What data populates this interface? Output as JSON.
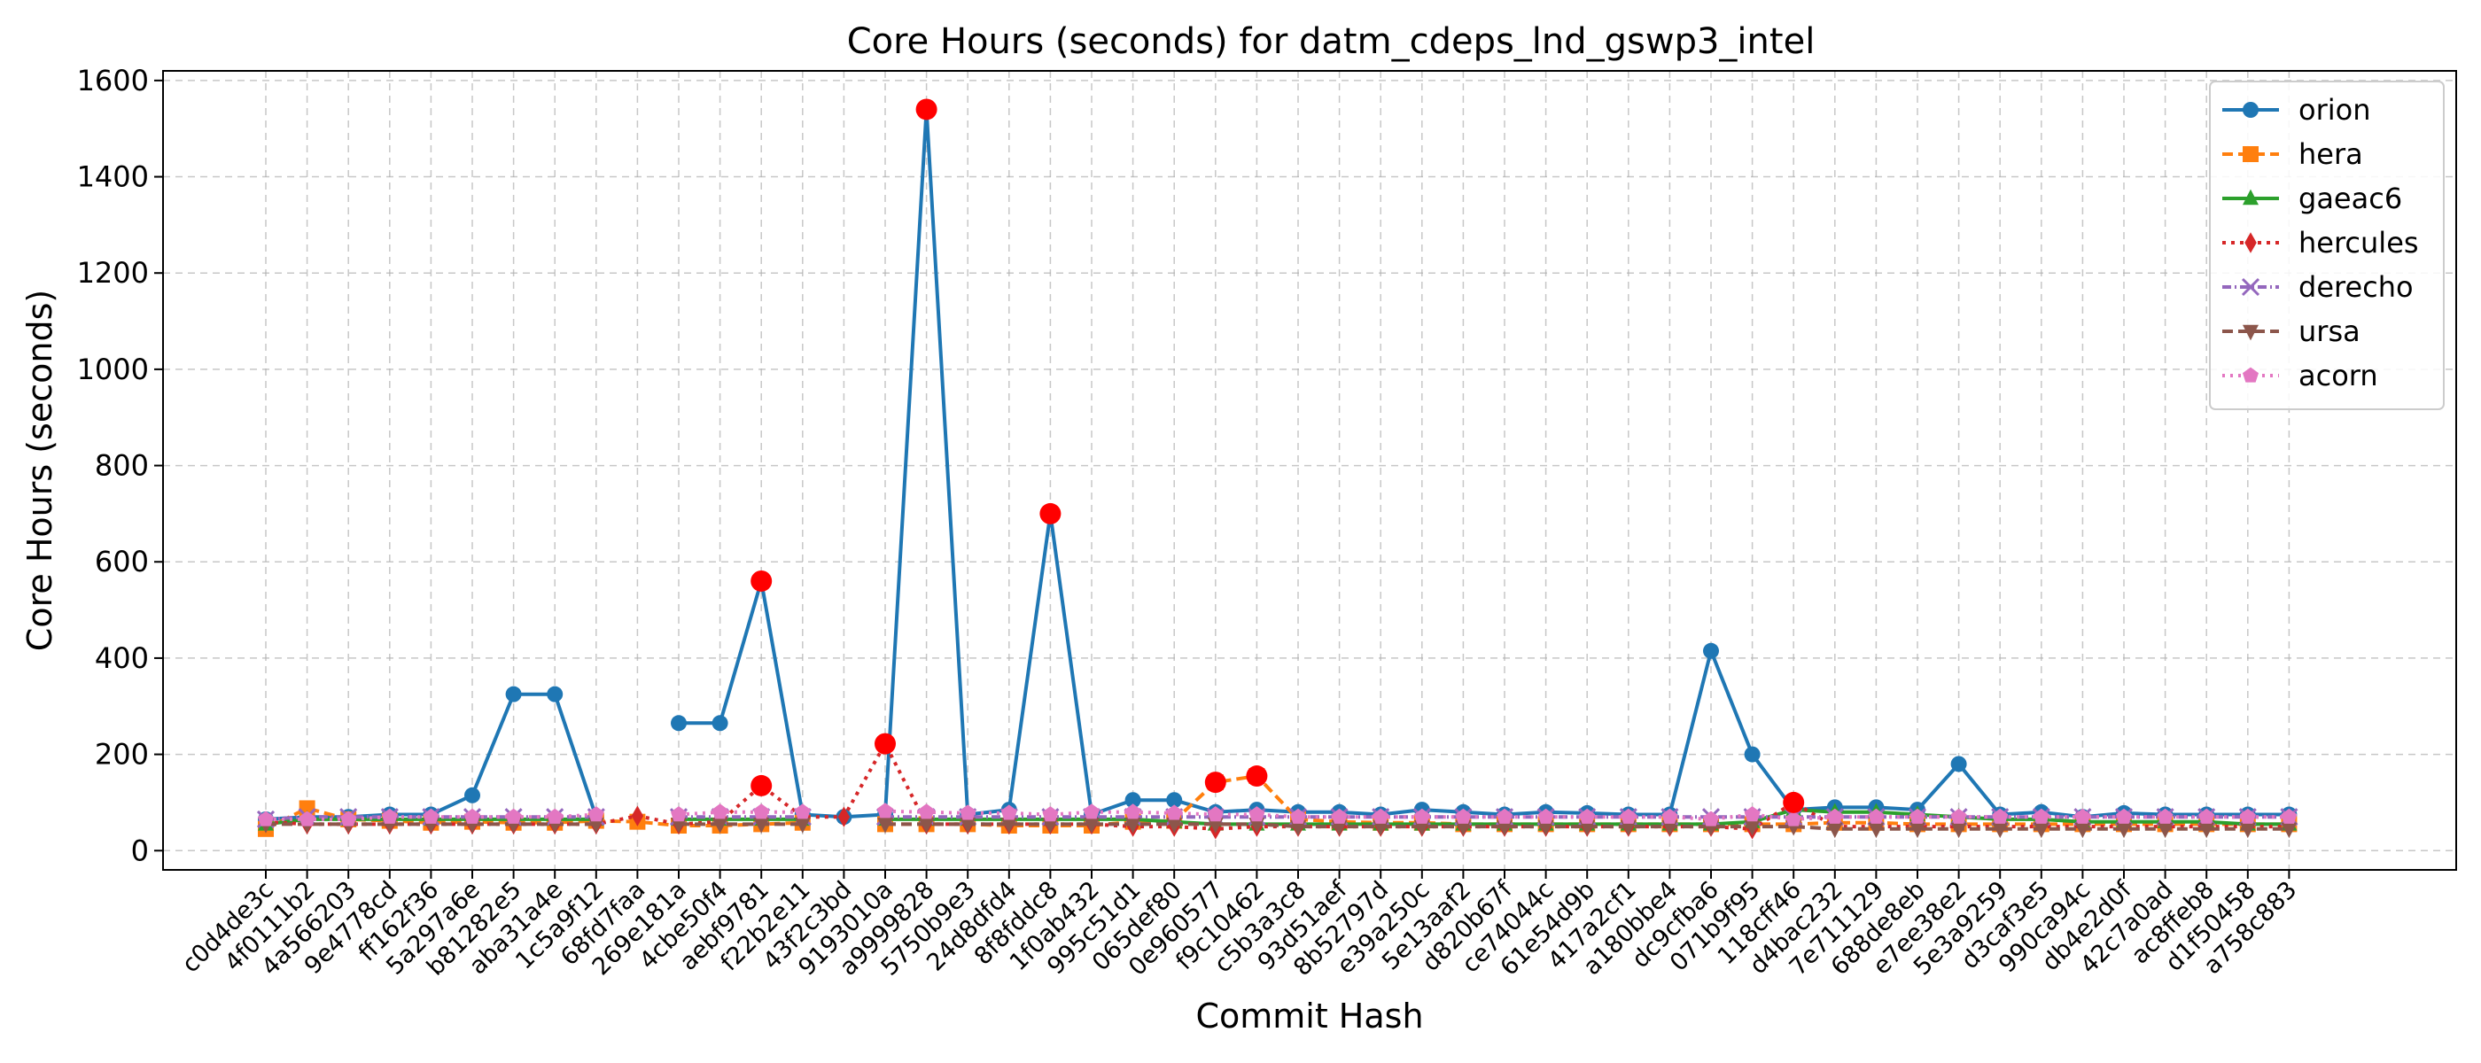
{
  "chart_data": {
    "type": "line",
    "title": "Core Hours (seconds) for datm_cdeps_lnd_gswp3_intel",
    "xlabel": "Commit Hash",
    "ylabel": "Core Hours (seconds)",
    "ylim": [
      -40,
      1620
    ],
    "yticks": [
      0,
      200,
      400,
      600,
      800,
      1000,
      1200,
      1400,
      1600
    ],
    "grid": true,
    "legend_position": "top-right",
    "categories": [
      "c0d4de3c",
      "4f0111b2",
      "4a566203",
      "9e4778cd",
      "ff162f36",
      "5a297a6e",
      "b81282e5",
      "aba31a4e",
      "1c5a9f12",
      "68fd7faa",
      "269e181a",
      "4cbe50f4",
      "aebf9781",
      "f22b2e11",
      "43f2c3bd",
      "9193010a",
      "a9999828",
      "5750b9e3",
      "24d8dfd4",
      "8f8fddc8",
      "1f0ab432",
      "995c51d1",
      "065def80",
      "0e960577",
      "f9c10462",
      "c5b3a3c8",
      "93d51aef",
      "8b52797d",
      "e39a250c",
      "5e13aaf2",
      "d820b67f",
      "ce74044c",
      "61e54d9b",
      "417a2cf1",
      "a180bbe4",
      "dc9cfba6",
      "071b9f95",
      "118cff46",
      "d4bac232",
      "7e711129",
      "688de8eb",
      "e7ee38e2",
      "5e3a9259",
      "d3caf3e5",
      "990ca94c",
      "db4e2d0f",
      "42c7a0ad",
      "ac8ffeb8",
      "d1f50458",
      "a758c883"
    ],
    "series": [
      {
        "name": "orion",
        "color": "#1f77b4",
        "dash": "",
        "marker": "circle",
        "values": [
          65,
          70,
          70,
          75,
          75,
          115,
          325,
          325,
          70,
          null,
          265,
          265,
          560,
          75,
          70,
          75,
          1540,
          75,
          85,
          700,
          75,
          105,
          105,
          80,
          85,
          80,
          80,
          75,
          85,
          80,
          75,
          80,
          78,
          75,
          75,
          415,
          200,
          85,
          90,
          90,
          85,
          180,
          75,
          80,
          70,
          78,
          75,
          75,
          75,
          75
        ]
      },
      {
        "name": "hera",
        "color": "#ff7f0e",
        "dash": "12,6",
        "marker": "square",
        "values": [
          45,
          88,
          65,
          62,
          58,
          60,
          58,
          58,
          62,
          60,
          52,
          52,
          55,
          58,
          null,
          55,
          55,
          55,
          52,
          52,
          52,
          60,
          62,
          142,
          155,
          65,
          60,
          58,
          58,
          55,
          55,
          55,
          55,
          55,
          55,
          55,
          55,
          55,
          58,
          58,
          55,
          55,
          55,
          55,
          55,
          55,
          55,
          55,
          55,
          55
        ]
      },
      {
        "name": "gaeac6",
        "color": "#2ca02c",
        "dash": "",
        "marker": "triangle-up",
        "values": [
          55,
          65,
          65,
          65,
          65,
          65,
          65,
          65,
          65,
          null,
          65,
          65,
          65,
          65,
          null,
          65,
          65,
          65,
          65,
          65,
          65,
          65,
          60,
          55,
          55,
          55,
          55,
          55,
          55,
          55,
          55,
          55,
          55,
          55,
          55,
          55,
          60,
          85,
          80,
          80,
          75,
          70,
          65,
          65,
          60,
          60,
          60,
          60,
          55,
          55
        ]
      },
      {
        "name": "hercules",
        "color": "#d62728",
        "dash": "4,6",
        "marker": "diamond",
        "values": [
          60,
          55,
          55,
          55,
          55,
          55,
          55,
          55,
          55,
          72,
          55,
          60,
          135,
          70,
          70,
          222,
          55,
          55,
          55,
          55,
          55,
          50,
          50,
          45,
          50,
          50,
          50,
          50,
          50,
          50,
          50,
          50,
          50,
          50,
          50,
          50,
          45,
          100,
          50,
          50,
          50,
          50,
          50,
          50,
          50,
          50,
          50,
          50,
          50,
          50
        ]
      },
      {
        "name": "derecho",
        "color": "#9467bd",
        "dash": "10,4,2,4",
        "marker": "x",
        "values": [
          65,
          70,
          70,
          70,
          70,
          70,
          70,
          70,
          70,
          null,
          70,
          70,
          70,
          70,
          null,
          70,
          70,
          70,
          70,
          70,
          70,
          70,
          70,
          70,
          70,
          70,
          70,
          70,
          70,
          70,
          70,
          70,
          70,
          70,
          70,
          70,
          70,
          70,
          70,
          70,
          70,
          70,
          70,
          70,
          70,
          70,
          70,
          70,
          70,
          70
        ]
      },
      {
        "name": "ursa",
        "color": "#8c564b",
        "dash": "12,6",
        "marker": "triangle-down",
        "values": [
          55,
          55,
          55,
          55,
          55,
          55,
          55,
          55,
          55,
          null,
          55,
          55,
          55,
          55,
          null,
          55,
          55,
          55,
          55,
          55,
          55,
          55,
          55,
          55,
          55,
          50,
          50,
          50,
          50,
          50,
          50,
          50,
          50,
          50,
          50,
          50,
          50,
          50,
          45,
          45,
          45,
          45,
          45,
          45,
          45,
          45,
          45,
          45,
          45,
          45
        ]
      },
      {
        "name": "acorn",
        "color": "#e377c2",
        "dash": "3,6",
        "marker": "pentagon",
        "values": [
          65,
          65,
          65,
          70,
          70,
          70,
          70,
          70,
          75,
          null,
          75,
          80,
          80,
          80,
          null,
          82,
          80,
          78,
          78,
          75,
          80,
          80,
          78,
          75,
          75,
          70,
          70,
          70,
          70,
          70,
          70,
          70,
          70,
          70,
          70,
          65,
          75,
          65,
          70,
          70,
          70,
          70,
          70,
          70,
          70,
          70,
          70,
          70,
          70,
          70
        ]
      }
    ],
    "highlights": [
      {
        "series": "orion",
        "index": 12
      },
      {
        "series": "orion",
        "index": 16
      },
      {
        "series": "orion",
        "index": 19
      },
      {
        "series": "hercules",
        "index": 12
      },
      {
        "series": "hercules",
        "index": 15
      },
      {
        "series": "hera",
        "index": 23
      },
      {
        "series": "hera",
        "index": 24
      },
      {
        "series": "hercules",
        "index": 37
      }
    ],
    "highlight_color": "#ff0000"
  }
}
